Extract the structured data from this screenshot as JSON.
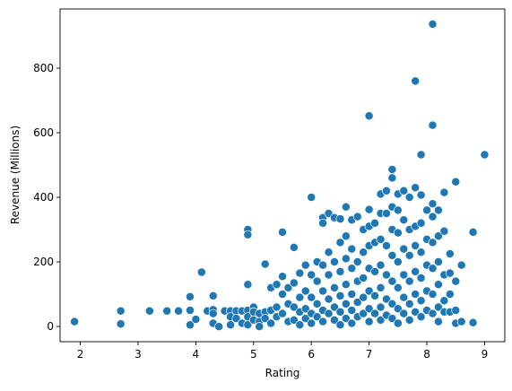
{
  "colors": {
    "marker": "#1f77b4",
    "marker_edge": "#ffffff",
    "axis": "#000000"
  },
  "chart_data": {
    "type": "scatter",
    "title": "",
    "xlabel": "Rating",
    "ylabel": "Revenue (Millions)",
    "xlim": [
      1.65,
      9.35
    ],
    "ylim": [
      -47,
      983
    ],
    "xticks": [
      2,
      3,
      4,
      5,
      6,
      7,
      8,
      9
    ],
    "yticks": [
      0,
      200,
      400,
      600,
      800
    ],
    "xtick_labels": [
      "2",
      "3",
      "4",
      "5",
      "6",
      "7",
      "8",
      "9"
    ],
    "ytick_labels": [
      "0",
      "200",
      "400",
      "600",
      "800"
    ],
    "grid": false,
    "legend": "none",
    "series": [
      {
        "points": [
          [
            1.9,
            15
          ],
          [
            2.7,
            48
          ],
          [
            2.7,
            8
          ],
          [
            3.2,
            48
          ],
          [
            3.5,
            48
          ],
          [
            3.7,
            48
          ],
          [
            3.9,
            92
          ],
          [
            3.9,
            50
          ],
          [
            3.9,
            5
          ],
          [
            4.0,
            22
          ],
          [
            4.1,
            168
          ],
          [
            4.2,
            48
          ],
          [
            4.3,
            95
          ],
          [
            4.3,
            52
          ],
          [
            4.3,
            40
          ],
          [
            4.3,
            10
          ],
          [
            4.4,
            0
          ],
          [
            4.5,
            48
          ],
          [
            4.6,
            48
          ],
          [
            4.6,
            30
          ],
          [
            4.6,
            5
          ],
          [
            4.7,
            48
          ],
          [
            4.7,
            25
          ],
          [
            4.8,
            48
          ],
          [
            4.8,
            10
          ],
          [
            4.9,
            300
          ],
          [
            4.9,
            284
          ],
          [
            4.9,
            130
          ],
          [
            4.9,
            50
          ],
          [
            4.9,
            30
          ],
          [
            4.9,
            5
          ],
          [
            5.0,
            60
          ],
          [
            5.0,
            45
          ],
          [
            5.0,
            20
          ],
          [
            5.1,
            40
          ],
          [
            5.1,
            15
          ],
          [
            5.1,
            0
          ],
          [
            5.2,
            193
          ],
          [
            5.2,
            45
          ],
          [
            5.2,
            25
          ],
          [
            5.3,
            120
          ],
          [
            5.3,
            50
          ],
          [
            5.3,
            10
          ],
          [
            5.4,
            130
          ],
          [
            5.4,
            60
          ],
          [
            5.4,
            30
          ],
          [
            5.5,
            292
          ],
          [
            5.5,
            155
          ],
          [
            5.5,
            100
          ],
          [
            5.5,
            40
          ],
          [
            5.6,
            120
          ],
          [
            5.6,
            70
          ],
          [
            5.6,
            15
          ],
          [
            5.7,
            245
          ],
          [
            5.7,
            135
          ],
          [
            5.7,
            60
          ],
          [
            5.7,
            20
          ],
          [
            5.8,
            165
          ],
          [
            5.8,
            90
          ],
          [
            5.8,
            45
          ],
          [
            5.8,
            5
          ],
          [
            5.9,
            190
          ],
          [
            5.9,
            110
          ],
          [
            5.9,
            55
          ],
          [
            5.9,
            25
          ],
          [
            6.0,
            400
          ],
          [
            6.0,
            160
          ],
          [
            6.0,
            90
          ],
          [
            6.0,
            40
          ],
          [
            6.0,
            10
          ],
          [
            6.1,
            200
          ],
          [
            6.1,
            140
          ],
          [
            6.1,
            70
          ],
          [
            6.1,
            30
          ],
          [
            6.2,
            337
          ],
          [
            6.2,
            320
          ],
          [
            6.2,
            190
          ],
          [
            6.2,
            110
          ],
          [
            6.2,
            50
          ],
          [
            6.2,
            15
          ],
          [
            6.3,
            350
          ],
          [
            6.3,
            230
          ],
          [
            6.3,
            160
          ],
          [
            6.3,
            85
          ],
          [
            6.3,
            40
          ],
          [
            6.4,
            337
          ],
          [
            6.4,
            200
          ],
          [
            6.4,
            120
          ],
          [
            6.4,
            60
          ],
          [
            6.4,
            20
          ],
          [
            6.5,
            333
          ],
          [
            6.5,
            260
          ],
          [
            6.5,
            170
          ],
          [
            6.5,
            95
          ],
          [
            6.5,
            45
          ],
          [
            6.5,
            5
          ],
          [
            6.6,
            370
          ],
          [
            6.6,
            280
          ],
          [
            6.6,
            210
          ],
          [
            6.6,
            130
          ],
          [
            6.6,
            70
          ],
          [
            6.6,
            25
          ],
          [
            6.7,
            330
          ],
          [
            6.7,
            240
          ],
          [
            6.7,
            180
          ],
          [
            6.7,
            100
          ],
          [
            6.7,
            50
          ],
          [
            6.7,
            10
          ],
          [
            6.8,
            340
          ],
          [
            6.8,
            200
          ],
          [
            6.8,
            140
          ],
          [
            6.8,
            75
          ],
          [
            6.8,
            30
          ],
          [
            6.9,
            300
          ],
          [
            6.9,
            230
          ],
          [
            6.9,
            150
          ],
          [
            6.9,
            90
          ],
          [
            6.9,
            40
          ],
          [
            7.0,
            652
          ],
          [
            7.0,
            362
          ],
          [
            7.0,
            310
          ],
          [
            7.0,
            250
          ],
          [
            7.0,
            180
          ],
          [
            7.0,
            110
          ],
          [
            7.0,
            55
          ],
          [
            7.0,
            15
          ],
          [
            7.1,
            320
          ],
          [
            7.1,
            260
          ],
          [
            7.1,
            170
          ],
          [
            7.1,
            95
          ],
          [
            7.1,
            40
          ],
          [
            7.2,
            410
          ],
          [
            7.2,
            350
          ],
          [
            7.2,
            270
          ],
          [
            7.2,
            190
          ],
          [
            7.2,
            120
          ],
          [
            7.2,
            60
          ],
          [
            7.2,
            20
          ],
          [
            7.3,
            420
          ],
          [
            7.3,
            350
          ],
          [
            7.3,
            250
          ],
          [
            7.3,
            160
          ],
          [
            7.3,
            85
          ],
          [
            7.3,
            35
          ],
          [
            7.4,
            486
          ],
          [
            7.4,
            460
          ],
          [
            7.4,
            370
          ],
          [
            7.4,
            300
          ],
          [
            7.4,
            220
          ],
          [
            7.4,
            140
          ],
          [
            7.4,
            70
          ],
          [
            7.4,
            25
          ],
          [
            7.5,
            410
          ],
          [
            7.5,
            360
          ],
          [
            7.5,
            290
          ],
          [
            7.5,
            200
          ],
          [
            7.5,
            120
          ],
          [
            7.5,
            55
          ],
          [
            7.5,
            10
          ],
          [
            7.6,
            420
          ],
          [
            7.6,
            330
          ],
          [
            7.6,
            240
          ],
          [
            7.6,
            160
          ],
          [
            7.6,
            90
          ],
          [
            7.6,
            40
          ],
          [
            7.7,
            400
          ],
          [
            7.7,
            300
          ],
          [
            7.7,
            220
          ],
          [
            7.7,
            140
          ],
          [
            7.7,
            70
          ],
          [
            7.7,
            20
          ],
          [
            7.8,
            760
          ],
          [
            7.8,
            430
          ],
          [
            7.8,
            310
          ],
          [
            7.8,
            250
          ],
          [
            7.8,
            170
          ],
          [
            7.8,
            100
          ],
          [
            7.8,
            45
          ],
          [
            7.9,
            532
          ],
          [
            7.9,
            407
          ],
          [
            7.9,
            320
          ],
          [
            7.9,
            230
          ],
          [
            7.9,
            150
          ],
          [
            7.9,
            80
          ],
          [
            7.9,
            30
          ],
          [
            8.0,
            360
          ],
          [
            8.0,
            270
          ],
          [
            8.0,
            190
          ],
          [
            8.0,
            110
          ],
          [
            8.0,
            50
          ],
          [
            8.1,
            936
          ],
          [
            8.1,
            623
          ],
          [
            8.1,
            380
          ],
          [
            8.1,
            340
          ],
          [
            8.1,
            260
          ],
          [
            8.1,
            180
          ],
          [
            8.1,
            100
          ],
          [
            8.1,
            40
          ],
          [
            8.2,
            360
          ],
          [
            8.2,
            280
          ],
          [
            8.2,
            200
          ],
          [
            8.2,
            130
          ],
          [
            8.2,
            60
          ],
          [
            8.2,
            15
          ],
          [
            8.3,
            415
          ],
          [
            8.3,
            295
          ],
          [
            8.3,
            160
          ],
          [
            8.3,
            80
          ],
          [
            8.3,
            45
          ],
          [
            8.4,
            225
          ],
          [
            8.4,
            165
          ],
          [
            8.4,
            100
          ],
          [
            8.4,
            45
          ],
          [
            8.5,
            448
          ],
          [
            8.5,
            140
          ],
          [
            8.5,
            50
          ],
          [
            8.5,
            10
          ],
          [
            8.6,
            190
          ],
          [
            8.6,
            15
          ],
          [
            8.8,
            292
          ],
          [
            8.8,
            12
          ],
          [
            9.0,
            532
          ]
        ]
      }
    ]
  }
}
